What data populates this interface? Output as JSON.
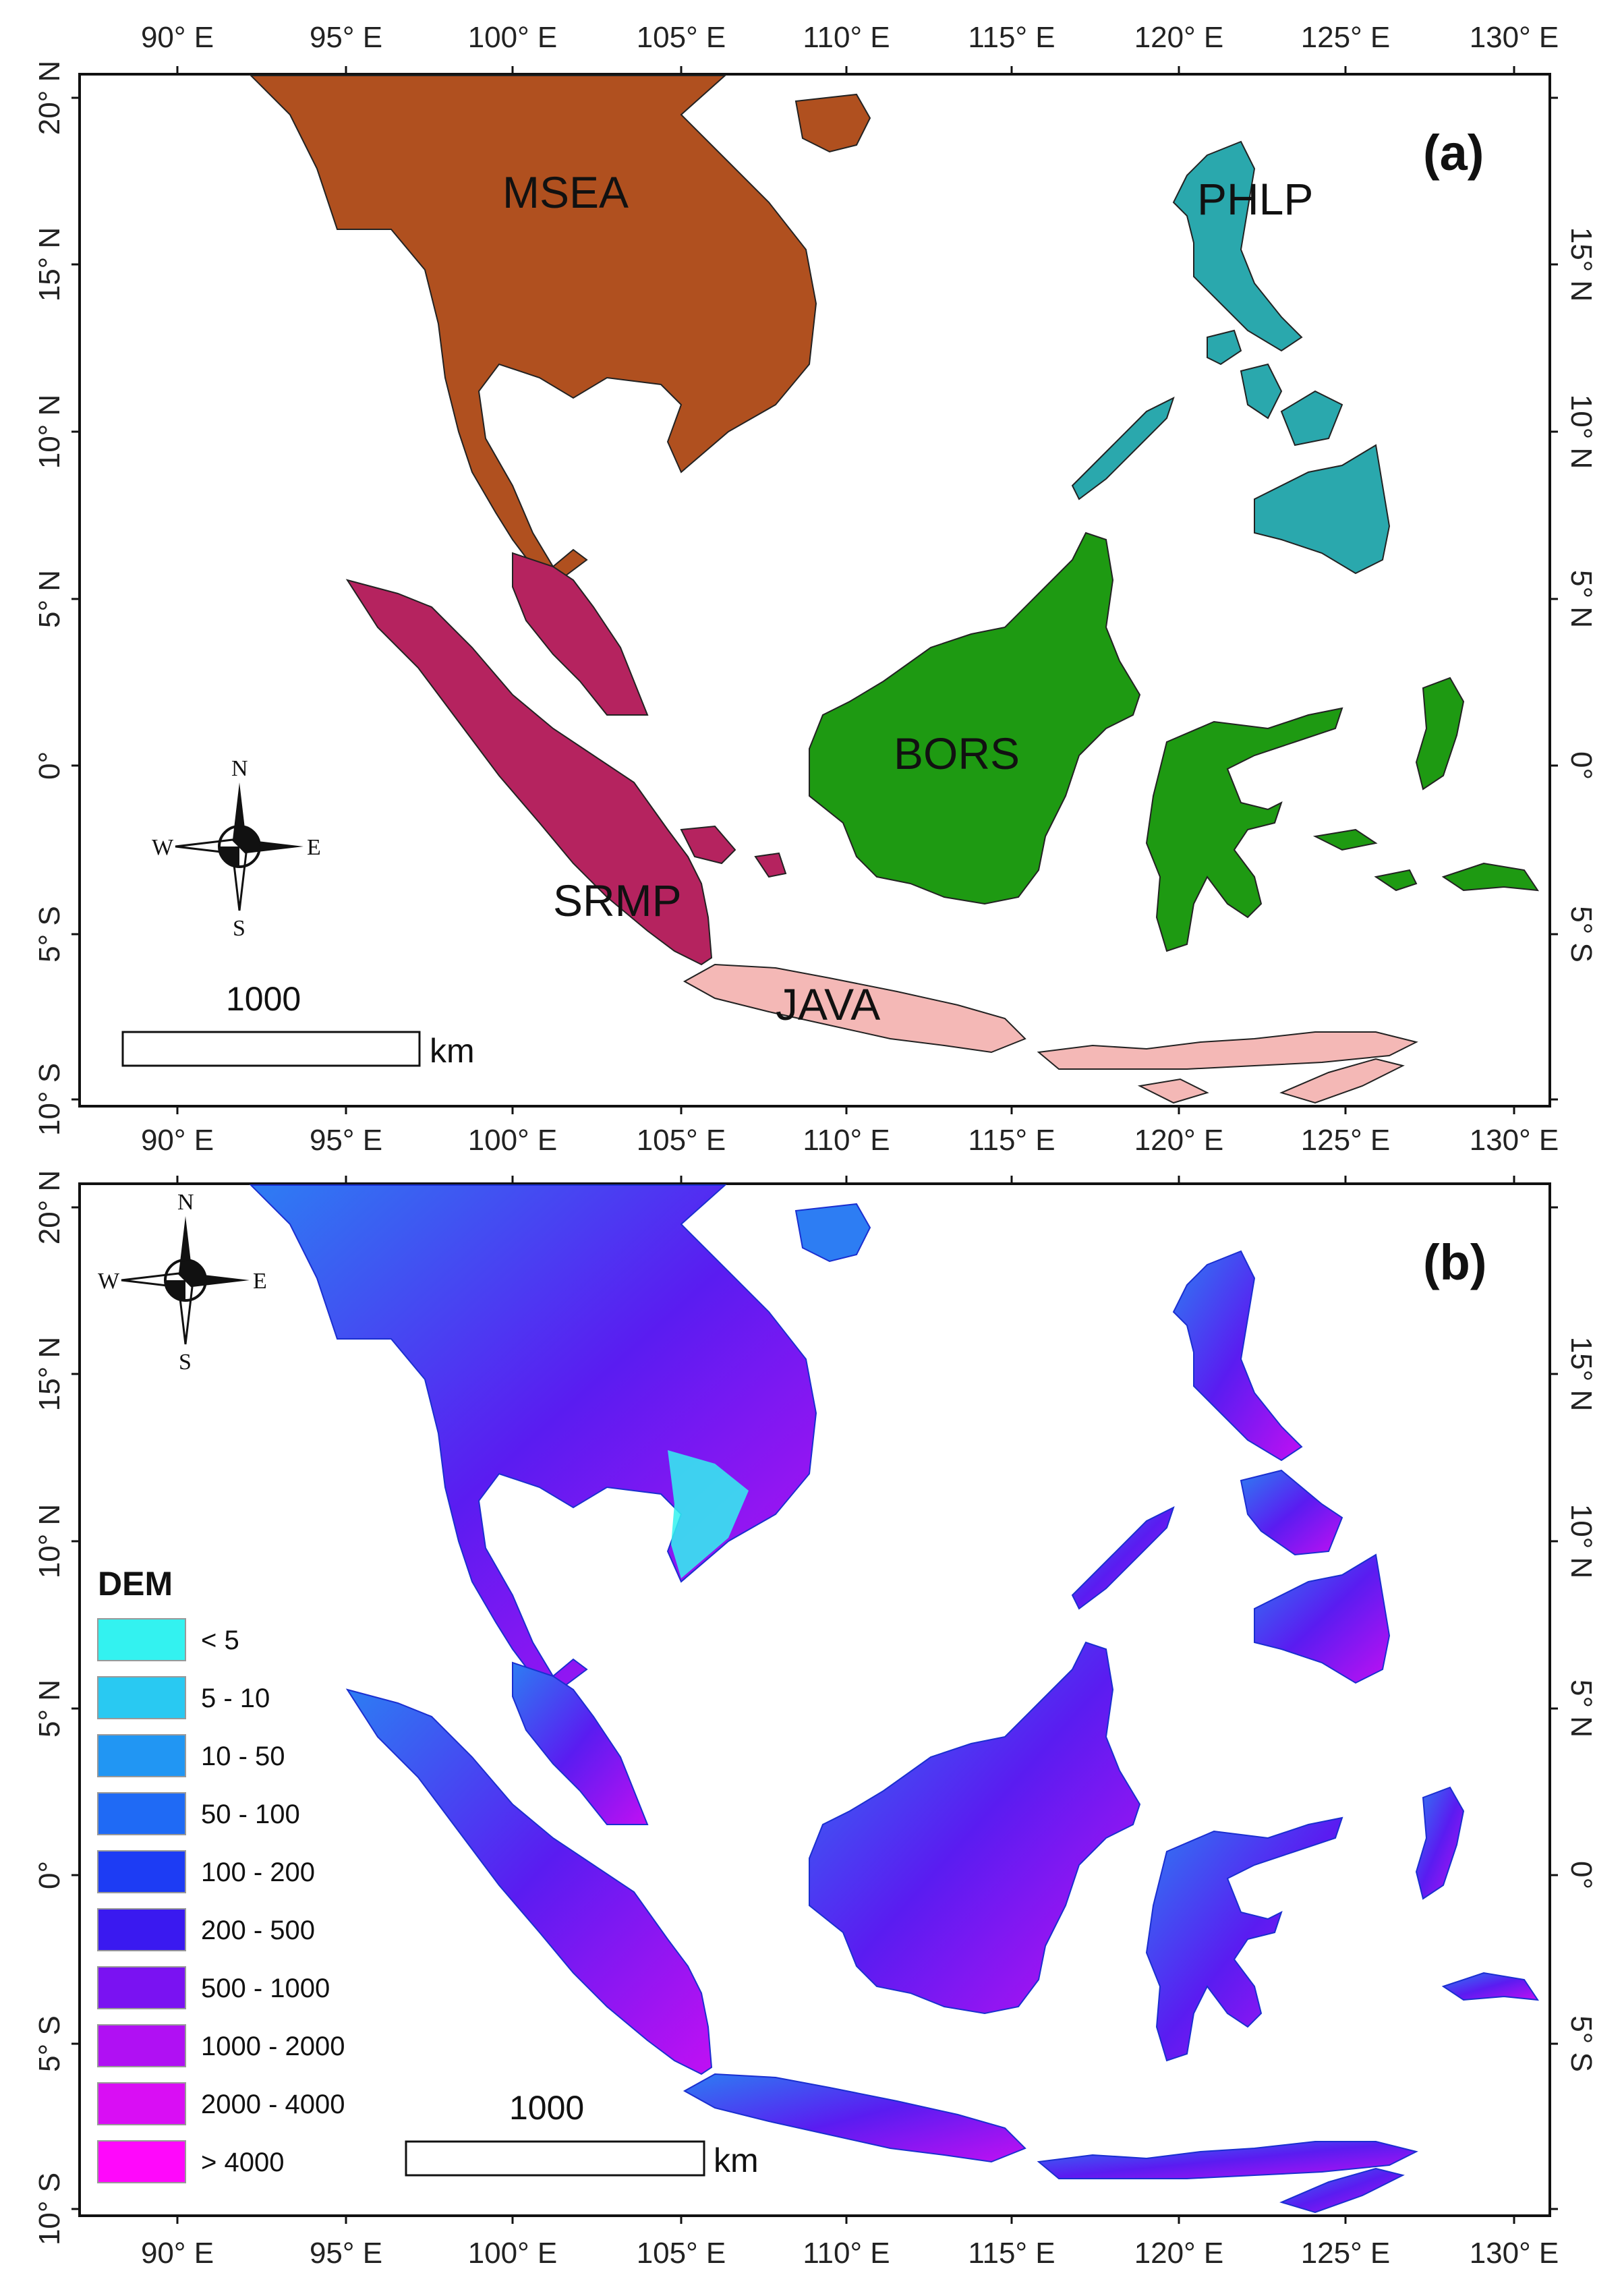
{
  "panel_a": {
    "label": "(a)",
    "regions": [
      {
        "name": "MSEA",
        "color": "#b0501f"
      },
      {
        "name": "PHLP",
        "color": "#2aa8ad"
      },
      {
        "name": "BORS",
        "color": "#1e9a12"
      },
      {
        "name": "SRMP",
        "color": "#b5235f"
      },
      {
        "name": "JAVA",
        "color": "#f4b8b6"
      }
    ],
    "scale_bar": {
      "value": "1000",
      "unit": "km"
    },
    "compass": {
      "n": "N",
      "s": "S",
      "e": "E",
      "w": "W"
    }
  },
  "panel_b": {
    "label": "(b)",
    "legend": {
      "title": "DEM",
      "classes": [
        {
          "label": "< 5",
          "color": "#33f2f0"
        },
        {
          "label": "5 - 10",
          "color": "#29c9f2"
        },
        {
          "label": "10 - 50",
          "color": "#2196f3"
        },
        {
          "label": "50 - 100",
          "color": "#1f6af5"
        },
        {
          "label": "100 - 200",
          "color": "#1d3cf4"
        },
        {
          "label": "200 - 500",
          "color": "#3a19f0"
        },
        {
          "label": "500 - 1000",
          "color": "#7a12f2"
        },
        {
          "label": "1000 - 2000",
          "color": "#b010f3"
        },
        {
          "label": "2000 - 4000",
          "color": "#d90ef4"
        },
        {
          "label": "> 4000",
          "color": "#ff08fb"
        }
      ]
    },
    "scale_bar": {
      "value": "1000",
      "unit": "km"
    },
    "compass": {
      "n": "N",
      "s": "S",
      "e": "E",
      "w": "W"
    }
  },
  "axes": {
    "lon_ticks": [
      "90° E",
      "95° E",
      "100° E",
      "105° E",
      "110° E",
      "115° E",
      "120° E",
      "125° E",
      "130° E"
    ],
    "lat_ticks": [
      "20° N",
      "15° N",
      "10° N",
      "5° N",
      "0°",
      "5° S",
      "10° S"
    ]
  }
}
